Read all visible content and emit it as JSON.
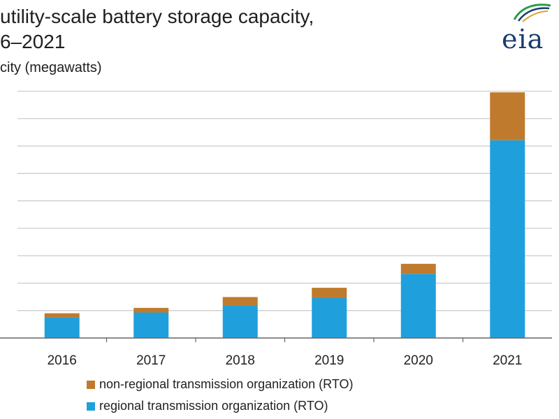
{
  "header": {
    "title_line1": "utility-scale battery storage capacity,",
    "title_line2": "6–2021",
    "ylabel": "city (megawatts)"
  },
  "logo": {
    "text": "eia"
  },
  "colors": {
    "rto": "#1fa0dc",
    "non_rto": "#c07a2d",
    "grid": "#c8c8c8",
    "axis": "#666666"
  },
  "chart_data": {
    "type": "bar",
    "stacked": true,
    "categories": [
      "2016",
      "2017",
      "2018",
      "2019",
      "2020",
      "2021"
    ],
    "series": [
      {
        "name": "regional transmission organization (RTO)",
        "color": "#1fa0dc",
        "values": [
          270,
          330,
          420,
          520,
          830,
          2560
        ]
      },
      {
        "name": "non-regional transmission organization (RTO)",
        "color": "#c07a2d",
        "values": [
          50,
          60,
          110,
          130,
          130,
          620
        ]
      }
    ],
    "ylim": [
      0,
      3200
    ],
    "ytick_step": 355,
    "grid": true,
    "legend": "bottom",
    "legend_order": [
      1,
      0
    ]
  }
}
